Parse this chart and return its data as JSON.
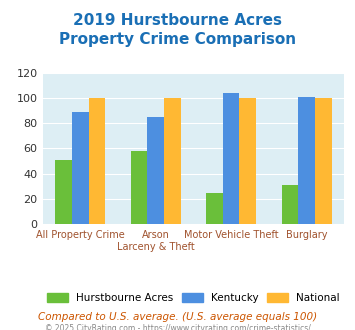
{
  "title_line1": "2019 Hurstbourne Acres",
  "title_line2": "Property Crime Comparison",
  "categories": [
    "All Property Crime",
    "Arson\nLarceny & Theft",
    "Motor Vehicle Theft",
    "Burglary"
  ],
  "series": {
    "Hurstbourne Acres": [
      51,
      58,
      25,
      31
    ],
    "Kentucky": [
      89,
      85,
      104,
      101
    ],
    "National": [
      100,
      100,
      100,
      100
    ]
  },
  "colors": {
    "Hurstbourne Acres": "#6abf3a",
    "Kentucky": "#4d8fe0",
    "National": "#ffb833"
  },
  "ylim": [
    0,
    120
  ],
  "yticks": [
    0,
    20,
    40,
    60,
    80,
    100,
    120
  ],
  "plot_bg": "#ddeef4",
  "title_color": "#1a6fb5",
  "xlabel_color": "#a0522d",
  "footer_text": "Compared to U.S. average. (U.S. average equals 100)",
  "footer_color": "#cc5500",
  "copyright_text": "© 2025 CityRating.com - https://www.cityrating.com/crime-statistics/",
  "copyright_color": "#888888",
  "bar_width": 0.22
}
